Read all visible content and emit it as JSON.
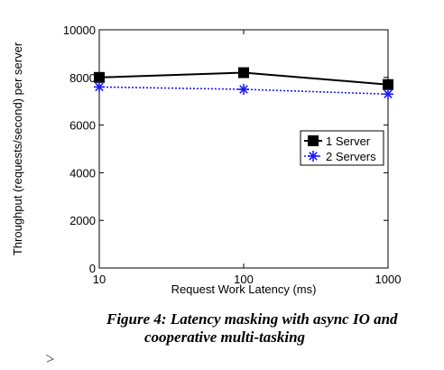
{
  "chart_data": {
    "type": "line",
    "title": "",
    "xlabel": "Request Work Latency (ms)",
    "ylabel": "Throughput (requests/second) per server",
    "x_scale": "log",
    "x": [
      10,
      100,
      1000
    ],
    "x_ticks": [
      "10",
      "100",
      "1000"
    ],
    "xlim": [
      10,
      1000
    ],
    "ylim": [
      0,
      10000
    ],
    "y_ticks": [
      "0",
      "2000",
      "4000",
      "6000",
      "8000",
      "10000"
    ],
    "grid": false,
    "legend": "upper-right",
    "series": [
      {
        "name": "1 Server",
        "values": [
          8000,
          8200,
          7700
        ],
        "color": "#000000",
        "marker": "square",
        "line": "solid"
      },
      {
        "name": "2 Servers",
        "values": [
          7600,
          7500,
          7300
        ],
        "color": "#1a1aff",
        "marker": "asterisk",
        "line": "dotted"
      }
    ]
  },
  "caption": {
    "line1": "Figure 4: Latency masking with async IO and",
    "line2": "cooperative multi-tasking"
  }
}
